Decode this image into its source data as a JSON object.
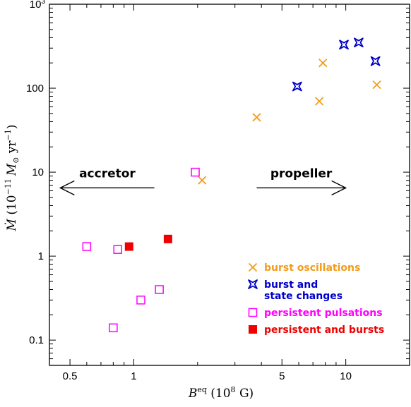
{
  "chart_data": {
    "type": "scatter",
    "x_scale": "log",
    "y_scale": "log",
    "xlim": [
      0.4,
      20
    ],
    "ylim": [
      0.05,
      1000
    ],
    "xlabel": "B^eq (10^8 G)",
    "xlabel_parts": {
      "symbol": "B",
      "sup": "eq",
      "units": " (10",
      "units_sup": "8",
      "units_end": " G)"
    },
    "ylabel": "Ṁ (10^-11 M⊙ yr^-1)",
    "ylabel_parts": {
      "symbol": "Ṁ",
      "units": " (10",
      "units_sup": "−11",
      "mass": "M",
      "mass_sub": "⊙",
      "units_end": " yr",
      "yr_sup": "−1",
      "close": ")"
    },
    "xticks": [
      {
        "value": 0.5,
        "label": "0.5"
      },
      {
        "value": 1,
        "label": "1"
      },
      {
        "value": 5,
        "label": "5"
      },
      {
        "value": 10,
        "label": "10"
      }
    ],
    "yticks": [
      {
        "value": 0.1,
        "label": "0.1"
      },
      {
        "value": 1,
        "label": "1"
      },
      {
        "value": 10,
        "label": "10"
      },
      {
        "value": 100,
        "label": "100"
      },
      {
        "value": 1000,
        "label": "10",
        "sup": "3"
      }
    ],
    "legend_position": "bottom-right",
    "series": [
      {
        "name": "burst oscillations",
        "marker": "x",
        "color": "#f39c1e",
        "points": [
          [
            2.1,
            8
          ],
          [
            3.8,
            45
          ],
          [
            7.5,
            70
          ],
          [
            7.8,
            200
          ],
          [
            14,
            110
          ]
        ]
      },
      {
        "name": "burst and state changes",
        "name_lines": [
          "burst and",
          "state changes"
        ],
        "marker": "star4",
        "color": "#0000cc",
        "points": [
          [
            5.9,
            105
          ],
          [
            9.8,
            330
          ],
          [
            11.5,
            350
          ],
          [
            13.8,
            210
          ]
        ]
      },
      {
        "name": "persistent pulsations",
        "marker": "open-square",
        "color": "#ff00ff",
        "points": [
          [
            1.95,
            10
          ],
          [
            0.6,
            1.3
          ],
          [
            0.84,
            1.2
          ],
          [
            1.08,
            0.3
          ],
          [
            1.32,
            0.4
          ],
          [
            0.8,
            0.14
          ]
        ]
      },
      {
        "name": "persistent and bursts",
        "marker": "filled-square",
        "color": "#ee0000",
        "points": [
          [
            0.95,
            1.3
          ],
          [
            1.45,
            1.6
          ]
        ]
      }
    ],
    "annotations": [
      {
        "text": "accretor",
        "direction": "left",
        "arrow_from": 1.25,
        "arrow_to": 0.45,
        "y": 6.5
      },
      {
        "text": "propeller",
        "direction": "right",
        "arrow_from": 3.8,
        "arrow_to": 10,
        "y": 6.5
      }
    ]
  }
}
